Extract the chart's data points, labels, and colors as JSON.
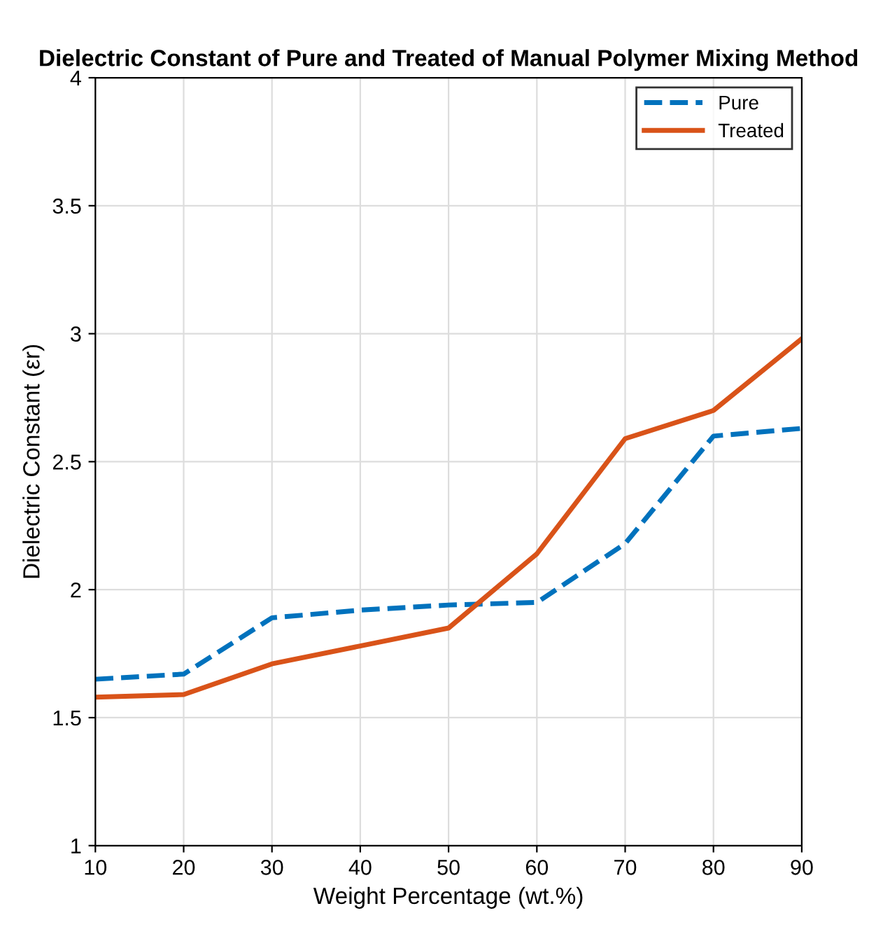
{
  "chart_data": {
    "type": "line",
    "title": "Dielectric Constant of Pure and Treated of Manual Polymer Mixing Method",
    "xlabel": "Weight Percentage (wt.%)",
    "ylabel": "Dielectric Constant (εr)",
    "x": [
      10,
      20,
      30,
      40,
      50,
      60,
      70,
      80,
      90
    ],
    "series": [
      {
        "name": "Pure",
        "color": "#0072bd",
        "line_style": "dashed",
        "values": [
          1.65,
          1.67,
          1.89,
          1.92,
          1.94,
          1.95,
          2.18,
          2.6,
          2.63
        ]
      },
      {
        "name": "Treated",
        "color": "#d95319",
        "line_style": "solid",
        "values": [
          1.58,
          1.59,
          1.71,
          1.78,
          1.85,
          2.14,
          2.59,
          2.7,
          2.98
        ]
      }
    ],
    "xlim": [
      10,
      90
    ],
    "xticks": [
      10,
      20,
      30,
      40,
      50,
      60,
      70,
      80,
      90
    ],
    "ylim": [
      1,
      4
    ],
    "yticks": [
      1,
      1.5,
      2,
      2.5,
      3,
      3.5,
      4
    ],
    "grid": true,
    "legend": "top right"
  }
}
